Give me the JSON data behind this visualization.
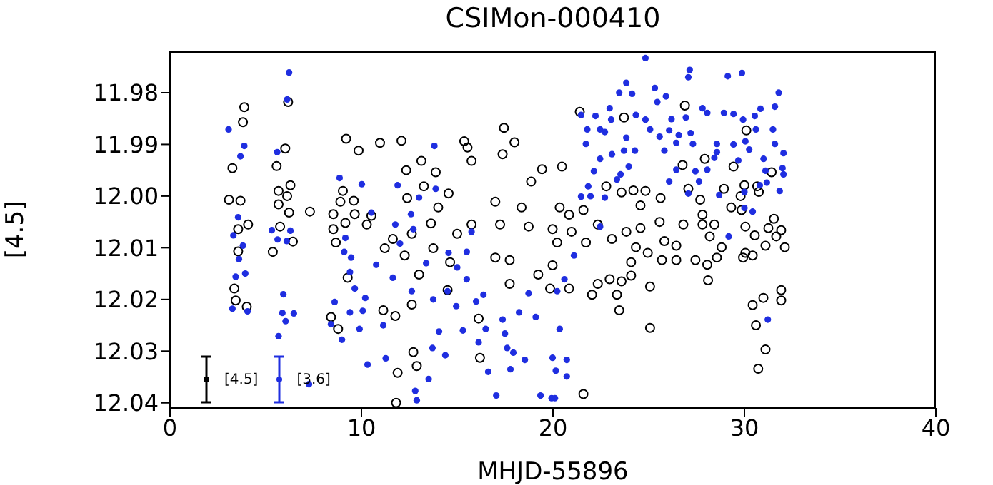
{
  "chart_data": {
    "type": "scatter",
    "title": "CSIMon-000410",
    "xlabel": "MHJD-55896",
    "ylabel": "[4.5]",
    "xlim": [
      0,
      40
    ],
    "xticks": [
      0,
      10,
      20,
      30,
      40
    ],
    "ylim": [
      12.041,
      11.972
    ],
    "yticks": [
      11.98,
      11.99,
      {
        "value": 12.0,
        "label": "12.00"
      },
      12.01,
      12.02,
      12.03,
      12.04
    ],
    "marker": "circle",
    "grid": false,
    "legend": "bottom left",
    "series": [
      {
        "name": "[4.5]",
        "color": "#000000",
        "x": [
          3.88,
          3.81,
          3.26,
          3.08,
          3.68,
          4.08,
          3.56,
          3.56,
          3.36,
          3.43,
          4.01,
          6.17,
          6.02,
          5.57,
          6.29,
          5.67,
          6.12,
          5.67,
          6.22,
          5.75,
          6.42,
          5.37,
          7.31,
          9.2,
          9.85,
          9.03,
          8.9,
          9.6,
          8.53,
          9.16,
          9.65,
          8.53,
          8.66,
          9.28,
          8.41,
          8.78,
          10.97,
          12.09,
          12.34,
          13.13,
          13.88,
          13.26,
          15.37,
          15.54,
          15.75,
          17.44,
          17.99,
          17.37,
          19.43,
          18.86,
          12.39,
          14.55,
          14.01,
          16.99,
          18.36,
          10.52,
          10.28,
          11.64,
          12.63,
          13.63,
          15.0,
          15.75,
          17.24,
          18.73,
          13.75,
          11.22,
          12.26,
          14.63,
          16.99,
          17.74,
          19.23,
          13.01,
          14.5,
          11.14,
          11.77,
          12.63,
          16.12,
          17.74,
          12.71,
          11.89,
          12.89,
          16.19,
          11.81,
          21.4,
          23.71,
          26.89,
          30.1,
          20.47,
          26.77,
          27.93,
          29.43,
          22.78,
          23.58,
          24.2,
          24.83,
          25.62,
          27.07,
          27.69,
          28.93,
          30.0,
          20.35,
          21.59,
          20.84,
          24.57,
          27.81,
          29.31,
          19.98,
          20.97,
          22.34,
          23.83,
          24.57,
          25.57,
          26.81,
          27.81,
          28.43,
          30.05,
          20.22,
          21.72,
          23.08,
          24.33,
          25.82,
          26.44,
          28.19,
          28.81,
          30.05,
          19.98,
          24.08,
          24.95,
          25.69,
          26.44,
          27.44,
          28.06,
          28.56,
          19.85,
          20.84,
          22.34,
          22.96,
          23.58,
          24.08,
          25.07,
          22.04,
          23.34,
          28.1,
          23.46,
          25.07,
          21.59,
          31.42,
          30.67,
          29.8,
          30.75,
          29.85,
          31.54,
          31.25,
          31.92,
          31.66,
          30.54,
          31.1,
          32.11,
          29.93,
          30.43,
          31.92,
          30.99,
          30.43,
          31.92,
          30.6,
          31.1,
          30.72
        ],
        "values": [
          11.9828,
          11.9857,
          11.9946,
          12.0007,
          12.0009,
          12.0055,
          12.0064,
          12.0107,
          12.0179,
          12.0202,
          12.0214,
          11.9818,
          11.9908,
          11.9942,
          11.9979,
          11.999,
          12.0,
          12.0016,
          12.0032,
          12.0059,
          12.0088,
          12.0108,
          12.003,
          11.9889,
          11.9912,
          11.999,
          12.0011,
          12.0009,
          12.0035,
          12.0052,
          12.0035,
          12.0064,
          12.009,
          12.0158,
          12.0234,
          12.0257,
          11.9897,
          11.9893,
          11.995,
          11.9932,
          11.9954,
          11.9981,
          11.9894,
          11.9906,
          11.9932,
          11.9868,
          11.9896,
          11.9919,
          11.9948,
          11.9972,
          12.0004,
          11.9995,
          12.0022,
          12.0011,
          12.0022,
          12.0038,
          12.0055,
          12.0083,
          12.0073,
          12.0053,
          12.0073,
          12.0055,
          12.0055,
          12.0059,
          12.0101,
          12.0101,
          12.0115,
          12.0128,
          12.0119,
          12.0124,
          12.0152,
          12.0152,
          12.0182,
          12.0221,
          12.0232,
          12.021,
          12.0237,
          12.017,
          12.0302,
          12.0342,
          12.0329,
          12.0313,
          12.04,
          11.9837,
          11.9848,
          11.9825,
          11.9873,
          11.9943,
          11.994,
          11.9928,
          11.9943,
          11.9981,
          11.9993,
          11.9989,
          11.999,
          12.0004,
          11.9986,
          12.0007,
          11.9986,
          11.9979,
          12.0022,
          12.0027,
          12.0036,
          12.0018,
          12.0036,
          12.0022,
          12.0064,
          12.0069,
          12.0055,
          12.0069,
          12.0062,
          12.005,
          12.0055,
          12.0055,
          12.0055,
          12.0059,
          12.009,
          12.009,
          12.0083,
          12.0099,
          12.0087,
          12.0096,
          12.0078,
          12.0099,
          12.011,
          12.0134,
          12.0128,
          12.011,
          12.0124,
          12.0124,
          12.0124,
          12.0133,
          12.0119,
          12.0179,
          12.0179,
          12.017,
          12.0161,
          12.0165,
          12.0154,
          12.0175,
          12.0191,
          12.0191,
          12.0163,
          12.0221,
          12.0255,
          12.0383,
          11.9954,
          11.9981,
          12.0,
          11.9992,
          12.0027,
          12.0044,
          12.0062,
          12.0066,
          12.0078,
          12.0076,
          12.0096,
          12.0099,
          12.0119,
          12.0115,
          12.0182,
          12.0197,
          12.0211,
          12.0202,
          12.025,
          12.0297,
          12.0334
        ]
      },
      {
        "name": "[3.6]",
        "color": "#1f2ee0",
        "x": [
          6.22,
          6.12,
          3.06,
          3.88,
          3.68,
          5.6,
          8.86,
          3.56,
          3.31,
          3.81,
          3.6,
          3.43,
          3.93,
          3.26,
          4.05,
          5.32,
          5.62,
          6.1,
          6.29,
          5.92,
          5.87,
          6.47,
          6.04,
          5.67,
          7.26,
          9.16,
          9.1,
          9.46,
          9.4,
          9.65,
          8.6,
          8.41,
          8.98,
          9.4,
          9.9,
          13.81,
          10.02,
          11.89,
          13.88,
          13.01,
          10.52,
          12.59,
          11.77,
          12.71,
          15.75,
          12.01,
          14.55,
          15.5,
          10.77,
          11.64,
          13.38,
          15.0,
          15.5,
          16.37,
          10.2,
          12.63,
          14.5,
          18.73,
          10.07,
          11.14,
          13.75,
          14.95,
          15.99,
          14.05,
          15.3,
          16.49,
          17.37,
          18.23,
          19.1,
          17.49,
          16.12,
          17.61,
          13.71,
          14.38,
          11.27,
          10.32,
          17.93,
          18.53,
          16.62,
          17.78,
          13.51,
          17.04,
          19.35,
          12.81,
          12.89,
          19.93,
          24.83,
          27.14,
          27.07,
          29.13,
          29.87,
          23.83,
          23.46,
          24.13,
          25.32,
          25.9,
          22.96,
          21.47,
          22.22,
          23.04,
          24.33,
          24.83,
          25.45,
          26.19,
          26.94,
          27.81,
          28.06,
          28.93,
          29.43,
          29.93,
          22.46,
          21.79,
          22.71,
          25.07,
          26.07,
          26.57,
          27.19,
          21.72,
          23.83,
          25.57,
          26.44,
          27.31,
          28.56,
          29.43,
          30.05,
          23.08,
          23.71,
          24.28,
          25.82,
          28.56,
          28.43,
          22.46,
          29.68,
          23.96,
          22.14,
          23.53,
          26.44,
          27.44,
          28.06,
          27.63,
          26.07,
          23.34,
          21.84,
          21.96,
          22.71,
          21.47,
          27.07,
          28.68,
          30.0,
          30.0,
          22.46,
          29.18,
          21.1,
          20.6,
          20.22,
          20.35,
          19.98,
          20.72,
          20.15,
          20.72,
          20.1,
          31.79,
          31.59,
          30.84,
          30.54,
          31.49,
          30.6,
          31.59,
          30.25,
          32.04,
          31.0,
          31.99,
          32.04,
          31.1,
          31.17,
          30.8,
          31.84,
          30.43,
          31.22
        ],
        "values": [
          11.9761,
          11.9813,
          11.9871,
          11.9903,
          11.9923,
          11.9915,
          11.9965,
          12.0041,
          12.0076,
          12.0096,
          12.0122,
          12.0156,
          12.015,
          12.0218,
          12.0223,
          12.0066,
          12.0084,
          12.0087,
          12.0067,
          12.019,
          12.0226,
          12.0227,
          12.0242,
          12.0271,
          12.0364,
          12.0081,
          12.0108,
          12.0119,
          12.0147,
          12.0179,
          12.0205,
          12.0248,
          12.0278,
          12.0225,
          12.0257,
          11.9903,
          11.9977,
          11.9979,
          11.9986,
          12.0003,
          12.0032,
          12.0035,
          12.0055,
          12.0064,
          12.0069,
          12.0092,
          12.011,
          12.0108,
          12.0133,
          12.0158,
          12.013,
          12.0138,
          12.0161,
          12.0191,
          12.0197,
          12.0184,
          12.0184,
          12.0188,
          12.0222,
          12.025,
          12.02,
          12.0213,
          12.0204,
          12.0262,
          12.026,
          12.0257,
          12.0239,
          12.0225,
          12.0234,
          12.0266,
          12.0283,
          12.0294,
          12.0294,
          12.0308,
          12.0314,
          12.0326,
          12.0303,
          12.0317,
          12.034,
          12.0335,
          12.0354,
          12.0386,
          12.0386,
          12.0377,
          12.0395,
          12.0391,
          11.9733,
          11.9756,
          11.977,
          11.9768,
          11.9762,
          11.9781,
          11.98,
          11.9802,
          11.9791,
          11.9807,
          11.983,
          11.9843,
          11.9845,
          11.9852,
          11.9843,
          11.9852,
          11.9818,
          11.9851,
          11.9848,
          11.983,
          11.9839,
          11.9839,
          11.9841,
          11.9852,
          11.9871,
          11.9871,
          11.9876,
          11.9871,
          11.9873,
          11.9882,
          11.9878,
          11.9899,
          11.9887,
          11.9885,
          11.9897,
          11.9899,
          11.9899,
          11.99,
          11.9894,
          11.9919,
          11.9912,
          11.9912,
          11.9912,
          11.9915,
          11.9926,
          11.9928,
          11.9931,
          11.9943,
          11.9952,
          11.9958,
          11.9949,
          11.9952,
          11.9949,
          11.9972,
          11.9972,
          11.9968,
          11.9981,
          12.0,
          12.0003,
          12.0001,
          11.9995,
          11.9998,
          11.9992,
          12.0023,
          12.0059,
          12.0078,
          12.0115,
          12.0161,
          12.0184,
          12.0257,
          12.0313,
          12.0317,
          12.0338,
          12.0349,
          12.0391,
          11.98,
          11.9827,
          11.9831,
          11.9845,
          11.9871,
          11.9871,
          11.9899,
          11.991,
          11.9917,
          11.9928,
          11.9946,
          11.9958,
          11.9951,
          11.9974,
          11.9979,
          11.999,
          12.003,
          12.0239
        ]
      }
    ]
  }
}
